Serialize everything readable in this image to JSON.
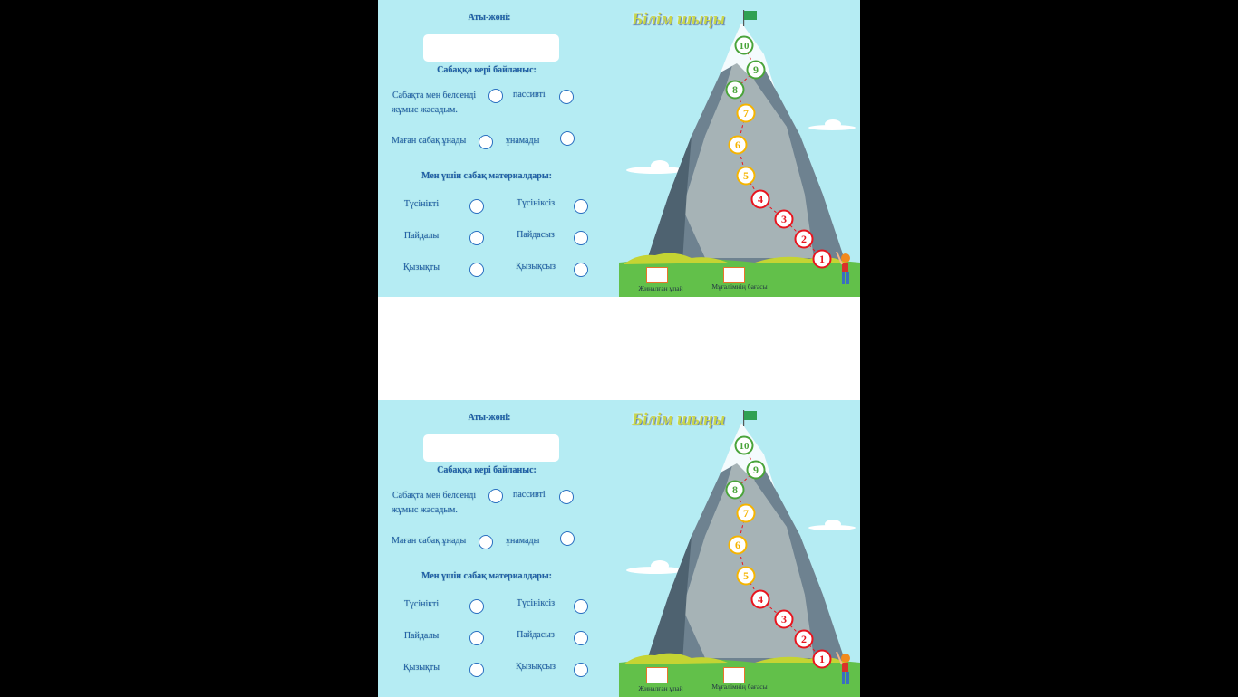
{
  "cards": [
    {
      "name_label": "Аты-жөні:",
      "name_value": "",
      "feedback_title": "Сабаққа кері байланыс:",
      "active_line1": "Сабақта мен белсенді",
      "active_line2": "жұмыс жасадым.",
      "passive": "пассивті",
      "liked": "Маған сабақ ұнады",
      "disliked": "ұнамады",
      "materials_title": "Мен үшін сабақ материалдары:",
      "options": [
        [
          "Түсінікті",
          "Түсініксіз"
        ],
        [
          "Пайдалы",
          "Пайдасыз"
        ],
        [
          "Қызықты",
          "Қызықсыз"
        ]
      ],
      "poster_title": "Білім шыңы",
      "levels": [
        "1",
        "2",
        "3",
        "4",
        "5",
        "6",
        "7",
        "8",
        "9",
        "10"
      ],
      "score_caption": "Жиналған ұпай",
      "teacher_caption": "Мұғалімнің бағасы"
    },
    {
      "name_label": "Аты-жөні:",
      "name_value": "",
      "feedback_title": "Сабаққа кері байланыс:",
      "active_line1": "Сабақта мен белсенді",
      "active_line2": "жұмыс жасадым.",
      "passive": "пассивті",
      "liked": "Маған сабақ ұнады",
      "disliked": "ұнамады",
      "materials_title": "Мен үшін сабақ материалдары:",
      "options": [
        [
          "Түсінікті",
          "Түсініксіз"
        ],
        [
          "Пайдалы",
          "Пайдасыз"
        ],
        [
          "Қызықты",
          "Қызықсыз"
        ]
      ],
      "poster_title": "Білім шыңы",
      "levels": [
        "1",
        "2",
        "3",
        "4",
        "5",
        "6",
        "7",
        "8",
        "9",
        "10"
      ],
      "score_caption": "Жиналған ұпай",
      "teacher_caption": "Мұғалімнің бағасы"
    }
  ],
  "colors": {
    "background": "#b5ecf3",
    "text": "#1f5fa8",
    "level_low": "#e8141e",
    "level_mid": "#f5b400",
    "level_high": "#4aa43a"
  }
}
